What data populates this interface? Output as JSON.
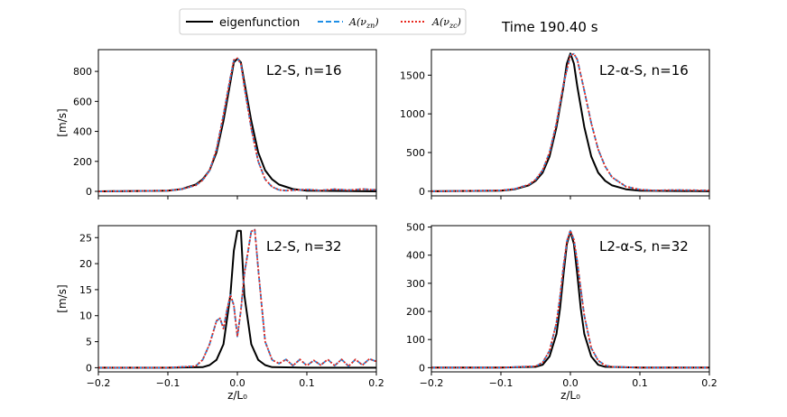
{
  "figure": {
    "time_label": "Time 190.40 s",
    "legend": [
      {
        "key": "eigenfunction",
        "label": "eigenfunction",
        "color": "#000000",
        "style": "solid"
      },
      {
        "key": "A_vzn",
        "label": "A(ν",
        "sub": "zn",
        "close": ")",
        "color": "#1f8fe6",
        "style": "dashed"
      },
      {
        "key": "A_vzc",
        "label": "A(ν",
        "sub": "zc",
        "close": ")",
        "color": "#e8281e",
        "style": "dotted"
      }
    ]
  },
  "chart_data": [
    {
      "type": "line",
      "title": "L2-S, n=16",
      "ylabel": "[m/s]",
      "xlabel": "",
      "xlim": [
        -0.2,
        0.2
      ],
      "ylim": [
        -30,
        945
      ],
      "xticks": [
        -0.2,
        -0.1,
        0.0,
        0.1,
        0.2
      ],
      "xtick_labels": [],
      "yticks": [
        0,
        200,
        400,
        600,
        800
      ],
      "ytick_labels": [
        "0",
        "200",
        "400",
        "600",
        "800"
      ],
      "series": [
        {
          "name": "eigenfunction",
          "x": [
            -0.2,
            -0.1,
            -0.08,
            -0.06,
            -0.05,
            -0.04,
            -0.03,
            -0.02,
            -0.01,
            -0.005,
            0,
            0.005,
            0.01,
            0.02,
            0.03,
            0.04,
            0.05,
            0.06,
            0.08,
            0.1,
            0.2
          ],
          "y": [
            0,
            5,
            15,
            45,
            80,
            140,
            260,
            470,
            730,
            860,
            885,
            860,
            730,
            470,
            260,
            140,
            80,
            45,
            15,
            5,
            0
          ]
        },
        {
          "name": "A(ν_zn)",
          "x": [
            -0.2,
            -0.1,
            -0.08,
            -0.06,
            -0.05,
            -0.04,
            -0.03,
            -0.02,
            -0.01,
            -0.005,
            0,
            0.005,
            0.01,
            0.02,
            0.03,
            0.04,
            0.05,
            0.06,
            0.07,
            0.08,
            0.1,
            0.12,
            0.14,
            0.16,
            0.18,
            0.2
          ],
          "y": [
            0,
            5,
            15,
            40,
            75,
            140,
            280,
            510,
            760,
            875,
            888,
            850,
            700,
            420,
            200,
            80,
            30,
            10,
            5,
            8,
            12,
            6,
            14,
            8,
            15,
            10
          ]
        },
        {
          "name": "A(ν_zc)",
          "x": [
            -0.2,
            -0.1,
            -0.08,
            -0.06,
            -0.05,
            -0.04,
            -0.03,
            -0.02,
            -0.01,
            -0.005,
            0,
            0.005,
            0.01,
            0.02,
            0.03,
            0.04,
            0.05,
            0.06,
            0.07,
            0.08,
            0.1,
            0.12,
            0.14,
            0.16,
            0.18,
            0.2
          ],
          "y": [
            0,
            5,
            15,
            40,
            75,
            140,
            280,
            510,
            760,
            875,
            888,
            850,
            700,
            420,
            200,
            80,
            30,
            10,
            5,
            8,
            12,
            6,
            14,
            8,
            15,
            10
          ]
        }
      ]
    },
    {
      "type": "line",
      "title": "L2-α-S, n=16",
      "ylabel": "",
      "xlabel": "",
      "xlim": [
        -0.2,
        0.2
      ],
      "ylim": [
        -60,
        1830
      ],
      "xticks": [
        -0.2,
        -0.1,
        0.0,
        0.1,
        0.2
      ],
      "xtick_labels": [],
      "yticks": [
        0,
        500,
        1000,
        1500
      ],
      "ytick_labels": [
        "0",
        "500",
        "1000",
        "1500"
      ],
      "series": [
        {
          "name": "eigenfunction",
          "x": [
            -0.2,
            -0.1,
            -0.08,
            -0.06,
            -0.05,
            -0.04,
            -0.03,
            -0.02,
            -0.01,
            -0.005,
            0,
            0.005,
            0.01,
            0.02,
            0.03,
            0.04,
            0.05,
            0.06,
            0.08,
            0.1,
            0.2
          ],
          "y": [
            0,
            8,
            25,
            75,
            135,
            240,
            450,
            830,
            1350,
            1650,
            1780,
            1650,
            1350,
            830,
            450,
            240,
            135,
            75,
            25,
            8,
            0
          ]
        },
        {
          "name": "A(ν_zn)",
          "x": [
            -0.2,
            -0.1,
            -0.08,
            -0.06,
            -0.05,
            -0.04,
            -0.03,
            -0.02,
            -0.01,
            0,
            0.005,
            0.01,
            0.02,
            0.03,
            0.04,
            0.05,
            0.06,
            0.08,
            0.1,
            0.12,
            0.15,
            0.2
          ],
          "y": [
            0,
            10,
            30,
            85,
            150,
            270,
            500,
            880,
            1380,
            1760,
            1775,
            1700,
            1300,
            880,
            540,
            320,
            180,
            60,
            20,
            10,
            15,
            10
          ]
        },
        {
          "name": "A(ν_zc)",
          "x": [
            -0.2,
            -0.1,
            -0.08,
            -0.06,
            -0.05,
            -0.04,
            -0.03,
            -0.02,
            -0.01,
            0,
            0.005,
            0.01,
            0.02,
            0.03,
            0.04,
            0.05,
            0.06,
            0.08,
            0.1,
            0.12,
            0.15,
            0.2
          ],
          "y": [
            0,
            10,
            30,
            85,
            150,
            270,
            500,
            880,
            1380,
            1760,
            1775,
            1700,
            1300,
            880,
            540,
            320,
            180,
            60,
            20,
            10,
            15,
            10
          ]
        }
      ]
    },
    {
      "type": "line",
      "title": "L2-S, n=32",
      "ylabel": "[m/s]",
      "xlabel": "z/L₀",
      "xlim": [
        -0.2,
        0.2
      ],
      "ylim": [
        -0.8,
        27.3
      ],
      "xticks": [
        -0.2,
        -0.1,
        0.0,
        0.1,
        0.2
      ],
      "xtick_labels": [
        "−0.2",
        "−0.1",
        "0.0",
        "0.1",
        "0.2"
      ],
      "yticks": [
        0,
        5,
        10,
        15,
        20,
        25
      ],
      "ytick_labels": [
        "0",
        "5",
        "10",
        "15",
        "20",
        "25"
      ],
      "series": [
        {
          "name": "eigenfunction",
          "x": [
            -0.2,
            -0.1,
            -0.05,
            -0.04,
            -0.03,
            -0.02,
            -0.01,
            -0.005,
            0,
            0.005,
            0.01,
            0.02,
            0.03,
            0.04,
            0.05,
            0.1,
            0.2
          ],
          "y": [
            0,
            0,
            0.1,
            0.5,
            1.5,
            4.5,
            14,
            22.5,
            26.3,
            26.3,
            14,
            4.5,
            1.5,
            0.5,
            0.1,
            0,
            0
          ]
        },
        {
          "name": "A(ν_zn)",
          "x": [
            -0.2,
            -0.1,
            -0.06,
            -0.05,
            -0.04,
            -0.03,
            -0.025,
            -0.02,
            -0.015,
            -0.01,
            -0.005,
            0,
            0.005,
            0.01,
            0.015,
            0.02,
            0.025,
            0.03,
            0.04,
            0.05,
            0.06,
            0.07,
            0.08,
            0.09,
            0.1,
            0.11,
            0.12,
            0.13,
            0.14,
            0.15,
            0.16,
            0.17,
            0.18,
            0.19,
            0.2
          ],
          "y": [
            0,
            0,
            0.3,
            1.5,
            4.5,
            9,
            9.5,
            7.5,
            11,
            14,
            12,
            6,
            11,
            18,
            22,
            26.2,
            26.5,
            19,
            5,
            1.5,
            0.8,
            1.6,
            0.4,
            1.6,
            0.4,
            1.4,
            0.5,
            1.6,
            0.4,
            1.6,
            0.3,
            1.6,
            0.5,
            1.7,
            1.2
          ]
        },
        {
          "name": "A(ν_zc)",
          "x": [
            -0.2,
            -0.1,
            -0.06,
            -0.05,
            -0.04,
            -0.03,
            -0.025,
            -0.02,
            -0.015,
            -0.01,
            -0.005,
            0,
            0.005,
            0.01,
            0.015,
            0.02,
            0.025,
            0.03,
            0.04,
            0.05,
            0.06,
            0.07,
            0.08,
            0.09,
            0.1,
            0.11,
            0.12,
            0.13,
            0.14,
            0.15,
            0.16,
            0.17,
            0.18,
            0.19,
            0.2
          ],
          "y": [
            0,
            0,
            0.3,
            1.5,
            4.5,
            9,
            9.5,
            7.5,
            11,
            14,
            12,
            6,
            11,
            18,
            22,
            26.2,
            26.5,
            19,
            5,
            1.5,
            0.8,
            1.6,
            0.4,
            1.6,
            0.4,
            1.4,
            0.5,
            1.6,
            0.4,
            1.6,
            0.3,
            1.6,
            0.5,
            1.7,
            1.2
          ]
        }
      ]
    },
    {
      "type": "line",
      "title": "L2-α-S, n=32",
      "ylabel": "",
      "xlabel": "z/L₀",
      "xlim": [
        -0.2,
        0.2
      ],
      "ylim": [
        -15,
        505
      ],
      "xticks": [
        -0.2,
        -0.1,
        0.0,
        0.1,
        0.2
      ],
      "xtick_labels": [
        "−0.2",
        "−0.1",
        "0.0",
        "0.1",
        "0.2"
      ],
      "yticks": [
        0,
        100,
        200,
        300,
        400,
        500
      ],
      "ytick_labels": [
        "0",
        "100",
        "200",
        "300",
        "400",
        "500"
      ],
      "series": [
        {
          "name": "eigenfunction",
          "x": [
            -0.2,
            -0.1,
            -0.05,
            -0.04,
            -0.03,
            -0.02,
            -0.015,
            -0.01,
            -0.005,
            0,
            0.005,
            0.01,
            0.015,
            0.02,
            0.03,
            0.04,
            0.05,
            0.1,
            0.2
          ],
          "y": [
            0,
            0,
            3,
            10,
            40,
            120,
            210,
            330,
            440,
            485,
            440,
            330,
            210,
            120,
            40,
            10,
            3,
            0,
            0
          ]
        },
        {
          "name": "A(ν_zn)",
          "x": [
            -0.2,
            -0.1,
            -0.05,
            -0.04,
            -0.03,
            -0.02,
            -0.015,
            -0.01,
            -0.005,
            0,
            0.005,
            0.01,
            0.015,
            0.02,
            0.03,
            0.04,
            0.05,
            0.06,
            0.1,
            0.2
          ],
          "y": [
            0,
            0,
            5,
            18,
            60,
            160,
            250,
            360,
            450,
            487,
            455,
            375,
            280,
            185,
            70,
            25,
            8,
            3,
            0,
            0
          ]
        },
        {
          "name": "A(ν_zc)",
          "x": [
            -0.2,
            -0.1,
            -0.05,
            -0.04,
            -0.03,
            -0.02,
            -0.015,
            -0.01,
            -0.005,
            0,
            0.005,
            0.01,
            0.015,
            0.02,
            0.03,
            0.04,
            0.05,
            0.06,
            0.1,
            0.2
          ],
          "y": [
            0,
            0,
            5,
            18,
            60,
            160,
            250,
            360,
            450,
            487,
            455,
            375,
            280,
            185,
            70,
            25,
            8,
            3,
            0,
            0
          ]
        }
      ]
    }
  ]
}
